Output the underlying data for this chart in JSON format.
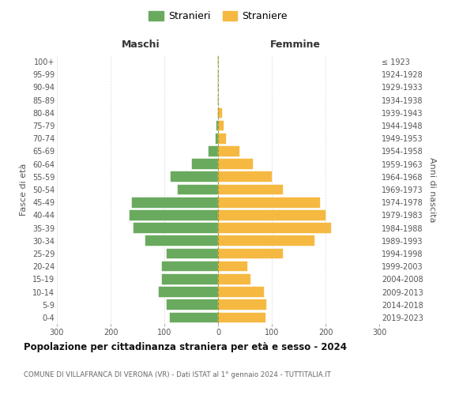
{
  "age_groups": [
    "0-4",
    "5-9",
    "10-14",
    "15-19",
    "20-24",
    "25-29",
    "30-34",
    "35-39",
    "40-44",
    "45-49",
    "50-54",
    "55-59",
    "60-64",
    "65-69",
    "70-74",
    "75-79",
    "80-84",
    "85-89",
    "90-94",
    "95-99",
    "100+"
  ],
  "birth_years": [
    "2019-2023",
    "2014-2018",
    "2009-2013",
    "2004-2008",
    "1999-2003",
    "1994-1998",
    "1989-1993",
    "1984-1988",
    "1979-1983",
    "1974-1978",
    "1969-1973",
    "1964-1968",
    "1959-1963",
    "1954-1958",
    "1949-1953",
    "1944-1948",
    "1939-1943",
    "1934-1938",
    "1929-1933",
    "1924-1928",
    "≤ 1923"
  ],
  "maschi": [
    90,
    95,
    110,
    105,
    105,
    95,
    135,
    158,
    165,
    160,
    75,
    88,
    48,
    18,
    4,
    3,
    0,
    0,
    0,
    0,
    0
  ],
  "femmine": [
    88,
    90,
    85,
    60,
    55,
    120,
    180,
    210,
    200,
    190,
    120,
    100,
    65,
    40,
    14,
    10,
    8,
    0,
    0,
    0,
    0
  ],
  "male_color": "#6aaa5f",
  "female_color": "#f5b942",
  "title": "Popolazione per cittadinanza straniera per età e sesso - 2024",
  "subtitle": "COMUNE DI VILLAFRANCA DI VERONA (VR) - Dati ISTAT al 1° gennaio 2024 - TUTTITALIA.IT",
  "ylabel_left": "Fasce di età",
  "ylabel_right": "Anni di nascita",
  "label_maschi": "Maschi",
  "label_femmine": "Femmine",
  "legend_stranieri": "Stranieri",
  "legend_straniere": "Straniere",
  "xlim": 300,
  "background_color": "#ffffff",
  "grid_color": "#cccccc"
}
